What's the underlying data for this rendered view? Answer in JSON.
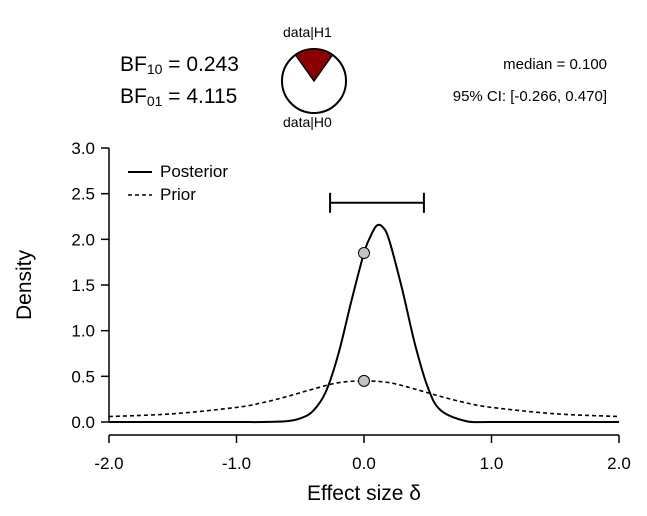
{
  "header": {
    "bf10": {
      "prefix": "BF",
      "sub": "10",
      "value": "= 0.243"
    },
    "bf01": {
      "prefix": "BF",
      "sub": "01",
      "value": "= 4.115"
    },
    "pie_top_label": "data|H1",
    "pie_bottom_label": "data|H0",
    "median": "median = 0.100",
    "ci": "95% CI: [-0.266, 0.470]",
    "pie_h1_fraction": 0.196,
    "pie_colors": {
      "h1": "#8b0000",
      "h0": "#ffffff"
    }
  },
  "chart_data": {
    "type": "line",
    "xlabel": "Effect size δ",
    "ylabel": "Density",
    "xlim": [
      -2.0,
      2.0
    ],
    "ylim": [
      0,
      3.0
    ],
    "x_ticks": [
      "-2.0",
      "-1.0",
      "0.0",
      "1.0",
      "2.0"
    ],
    "y_ticks": [
      "0.0",
      "0.5",
      "1.0",
      "1.5",
      "2.0",
      "2.5",
      "3.0"
    ],
    "grid": false,
    "legend": {
      "position": "top-left",
      "entries": [
        "Posterior",
        "Prior"
      ]
    },
    "series": [
      {
        "name": "Posterior",
        "style": "solid",
        "x": [
          -2.0,
          -1.5,
          -1.0,
          -0.8,
          -0.6,
          -0.5,
          -0.4,
          -0.3,
          -0.2,
          -0.1,
          0.0,
          0.05,
          0.1,
          0.15,
          0.2,
          0.3,
          0.4,
          0.5,
          0.6,
          0.8,
          1.0,
          1.5,
          2.0
        ],
        "y": [
          0.0,
          0.0,
          0.0,
          0.0,
          0.01,
          0.04,
          0.12,
          0.33,
          0.75,
          1.32,
          1.85,
          2.03,
          2.15,
          2.13,
          1.98,
          1.45,
          0.85,
          0.38,
          0.13,
          0.01,
          0.0,
          0.0,
          0.0
        ]
      },
      {
        "name": "Prior",
        "style": "dashed",
        "x": [
          -2.0,
          -1.5,
          -1.0,
          -0.8,
          -0.6,
          -0.4,
          -0.2,
          0.0,
          0.2,
          0.4,
          0.6,
          0.8,
          1.0,
          1.5,
          2.0
        ],
        "y": [
          0.06,
          0.09,
          0.16,
          0.21,
          0.28,
          0.36,
          0.43,
          0.45,
          0.43,
          0.36,
          0.28,
          0.21,
          0.16,
          0.09,
          0.06
        ]
      }
    ],
    "points": [
      {
        "name": "posterior-at-zero",
        "x": 0.0,
        "y": 1.85
      },
      {
        "name": "prior-at-zero",
        "x": 0.0,
        "y": 0.45
      }
    ],
    "credible_interval": {
      "lower": -0.266,
      "upper": 0.47,
      "y": 2.4
    }
  }
}
